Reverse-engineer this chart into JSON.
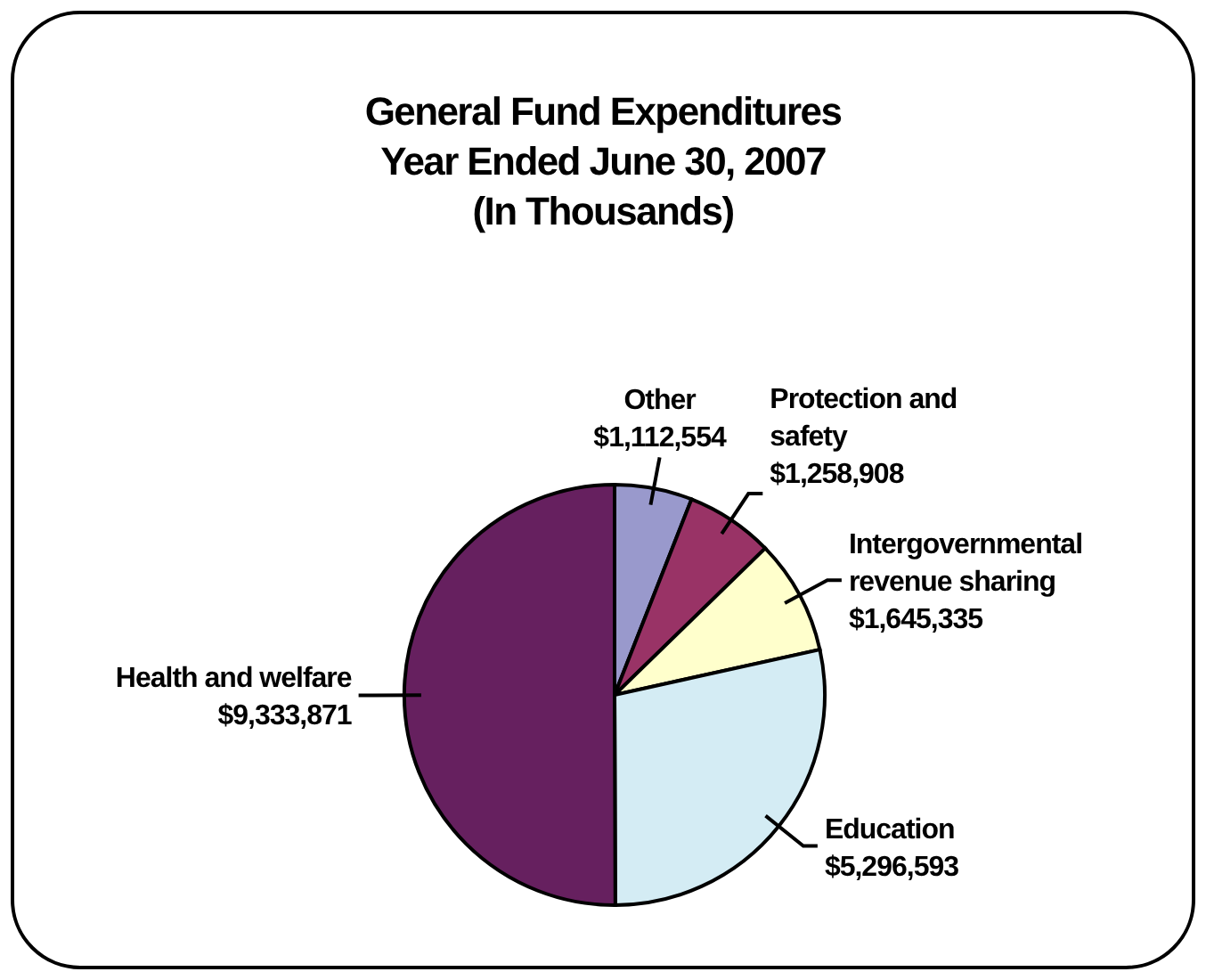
{
  "chart_data": {
    "type": "pie",
    "title": "General Fund Expenditures\nYear Ended June 30, 2007\n(In Thousands)",
    "categories": [
      "Other",
      "Protection and safety",
      "Intergovernmental revenue sharing",
      "Education",
      "Health and welfare"
    ],
    "values": [
      1112554,
      1258908,
      1645335,
      5296593,
      9333871
    ],
    "value_labels": [
      "$1,112,554",
      "$1,258,908",
      "$1,645,335",
      "$5,296,593",
      "$9,333,871"
    ],
    "colors": [
      "#9999cc",
      "#993366",
      "#ffffcc",
      "#d4ecf4",
      "#66205f"
    ]
  }
}
